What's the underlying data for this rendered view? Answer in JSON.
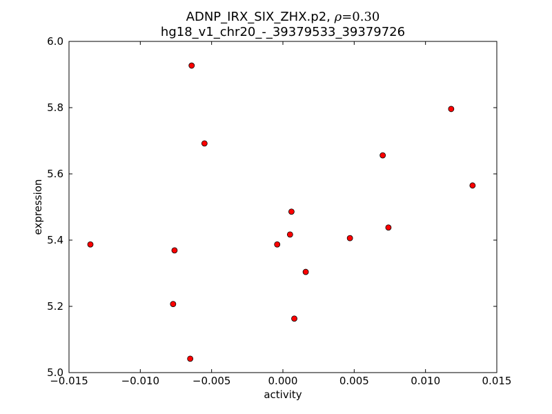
{
  "chart_data": {
    "type": "scatter",
    "title_line1_prefix": "ADNP_IRX_SIX_ZHX.p2, ",
    "title_rho_symbol": "ρ",
    "title_rho_equals": "=0.30",
    "title_line2": "hg18_v1_chr20_-_39379533_39379726",
    "xlabel": "activity",
    "ylabel": "expression",
    "xlim": [
      -0.015,
      0.015
    ],
    "ylim": [
      5.0,
      6.0
    ],
    "xticks": [
      -0.015,
      -0.01,
      -0.005,
      0.0,
      0.005,
      0.01,
      0.015
    ],
    "xtick_labels": [
      "−0.015",
      "−0.010",
      "−0.005",
      "0.000",
      "0.005",
      "0.010",
      "0.015"
    ],
    "yticks": [
      5.0,
      5.2,
      5.4,
      5.6,
      5.8,
      6.0
    ],
    "ytick_labels": [
      "5.0",
      "5.2",
      "5.4",
      "5.6",
      "5.8",
      "6.0"
    ],
    "marker_color": "#ff0000",
    "marker_edge": "#000000",
    "grid": false,
    "points": [
      {
        "x": -0.0064,
        "y": 5.927
      },
      {
        "x": -0.0055,
        "y": 5.692
      },
      {
        "x": -0.0135,
        "y": 5.387
      },
      {
        "x": -0.0076,
        "y": 5.369
      },
      {
        "x": -0.0077,
        "y": 5.207
      },
      {
        "x": -0.0065,
        "y": 5.042
      },
      {
        "x": -0.0004,
        "y": 5.387
      },
      {
        "x": 0.0005,
        "y": 5.417
      },
      {
        "x": 0.0006,
        "y": 5.486
      },
      {
        "x": 0.0016,
        "y": 5.304
      },
      {
        "x": 0.0008,
        "y": 5.163
      },
      {
        "x": 0.0047,
        "y": 5.406
      },
      {
        "x": 0.007,
        "y": 5.656
      },
      {
        "x": 0.0074,
        "y": 5.438
      },
      {
        "x": 0.0118,
        "y": 5.796
      },
      {
        "x": 0.0133,
        "y": 5.565
      }
    ]
  }
}
